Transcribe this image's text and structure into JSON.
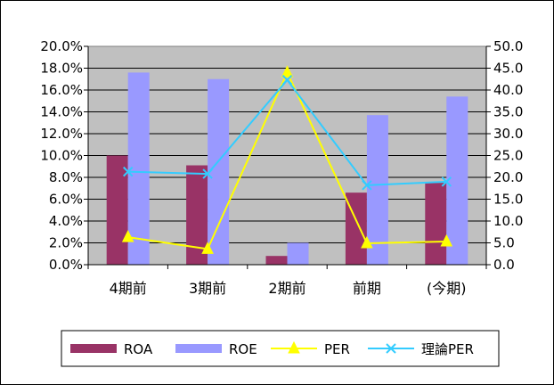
{
  "chart_data": {
    "type": "bar",
    "categories": [
      "4期前",
      "3期前",
      "2期前",
      "前期",
      "(今期)"
    ],
    "series": [
      {
        "name": "ROA",
        "type": "bar",
        "axis": "left",
        "color": "#993366",
        "values": [
          0.1,
          0.091,
          0.008,
          0.066,
          0.075
        ]
      },
      {
        "name": "ROE",
        "type": "bar",
        "axis": "left",
        "color": "#9999ff",
        "values": [
          0.176,
          0.17,
          0.02,
          0.137,
          0.154
        ]
      },
      {
        "name": "PER",
        "type": "line",
        "axis": "right",
        "color": "#ffff00",
        "marker": "triangle",
        "values": [
          6.3,
          3.6,
          44.0,
          4.9,
          5.3
        ]
      },
      {
        "name": "理論PER",
        "type": "line",
        "axis": "right",
        "color": "#33ccff",
        "marker": "x",
        "values": [
          21.3,
          20.8,
          42.3,
          18.2,
          19.0
        ]
      }
    ],
    "y_left": {
      "ylim": [
        0,
        0.2
      ],
      "ticks": [
        "0.0%",
        "2.0%",
        "4.0%",
        "6.0%",
        "8.0%",
        "10.0%",
        "12.0%",
        "14.0%",
        "16.0%",
        "18.0%",
        "20.0%"
      ]
    },
    "y_right": {
      "ylim": [
        0,
        50
      ],
      "ticks": [
        "0.0",
        "5.0",
        "10.0",
        "15.0",
        "20.0",
        "25.0",
        "30.0",
        "35.0",
        "40.0",
        "45.0",
        "50.0"
      ]
    },
    "grid": true,
    "plot_background": "#c0c0c0",
    "legend_position": "bottom",
    "title": "",
    "xlabel": "",
    "ylabel": ""
  }
}
